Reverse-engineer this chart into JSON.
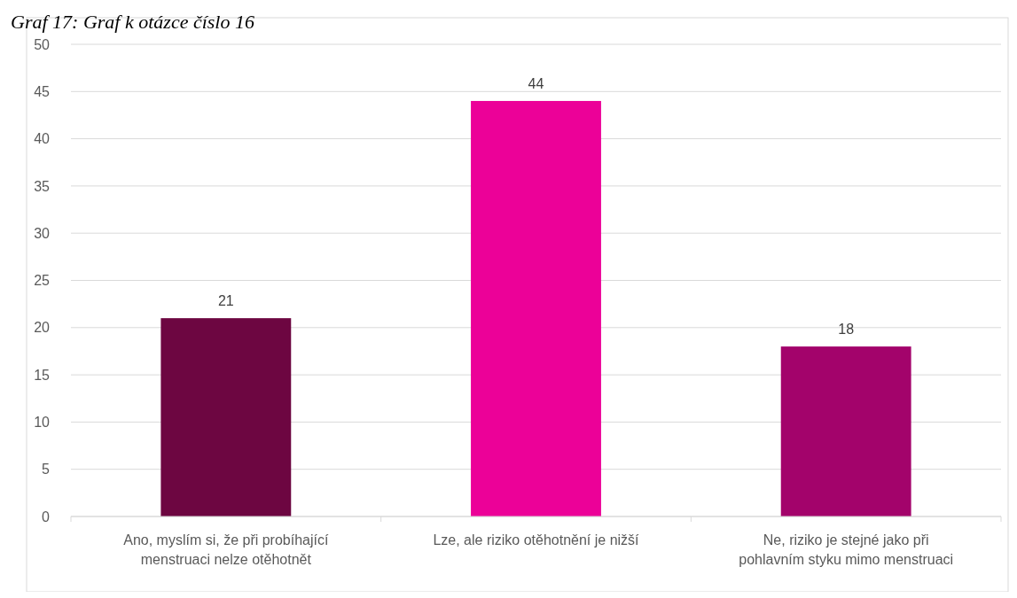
{
  "chart_data": {
    "type": "bar",
    "title": "Graf 17: Graf k otázce číslo 16",
    "categories": [
      "Ano, myslím si, že při probíhající menstruaci nelze otěhotnět",
      "Lze, ale riziko otěhotnění je nižší",
      "Ne, riziko je stejné jako při pohlavním styku mimo menstruaci"
    ],
    "values": [
      21,
      44,
      18
    ],
    "colors": [
      "#6d0641",
      "#ec0198",
      "#a3036b"
    ],
    "ylim": [
      0,
      50
    ],
    "yticks": [
      0,
      5,
      10,
      15,
      20,
      25,
      30,
      35,
      40,
      45,
      50
    ],
    "grid": "y",
    "data_labels": true
  }
}
